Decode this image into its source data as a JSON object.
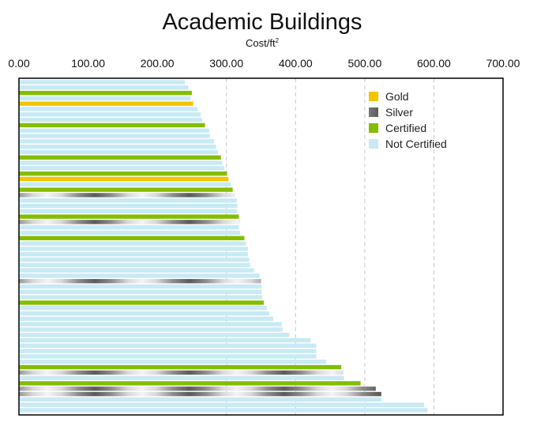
{
  "chart_data": {
    "type": "bar",
    "orientation": "horizontal",
    "title": "Academic Buildings",
    "subtitle": "Cost/ft",
    "subtitle_sup": "2",
    "xlim": [
      0,
      700
    ],
    "x_ticks": [
      "0.00",
      "100.00",
      "200.00",
      "300.00",
      "400.00",
      "500.00",
      "600.00",
      "700.00"
    ],
    "x_tick_values": [
      0,
      100,
      200,
      300,
      400,
      500,
      600,
      700
    ],
    "grid": "dashed vertical lines at 300, 400, 500, 600",
    "legend_position": "top-right",
    "categories": [
      {
        "key": "gold",
        "label": "Gold",
        "color": "#F5C400"
      },
      {
        "key": "silver",
        "label": "Silver",
        "color": "#8A8A8A"
      },
      {
        "key": "certified",
        "label": "Certified",
        "color": "#84BD00"
      },
      {
        "key": "not",
        "label": "Not Certified",
        "color": "#C8EAF4"
      }
    ],
    "bars": [
      {
        "value": 240,
        "category": "not"
      },
      {
        "value": 245,
        "category": "not"
      },
      {
        "value": 250,
        "category": "certified"
      },
      {
        "value": 248,
        "category": "not"
      },
      {
        "value": 252,
        "category": "gold"
      },
      {
        "value": 258,
        "category": "not"
      },
      {
        "value": 263,
        "category": "not"
      },
      {
        "value": 265,
        "category": "not"
      },
      {
        "value": 269,
        "category": "certified"
      },
      {
        "value": 275,
        "category": "not"
      },
      {
        "value": 276,
        "category": "not"
      },
      {
        "value": 282,
        "category": "not"
      },
      {
        "value": 285,
        "category": "not"
      },
      {
        "value": 288,
        "category": "not"
      },
      {
        "value": 292,
        "category": "certified"
      },
      {
        "value": 294,
        "category": "not"
      },
      {
        "value": 297,
        "category": "not"
      },
      {
        "value": 301,
        "category": "certified"
      },
      {
        "value": 303,
        "category": "gold"
      },
      {
        "value": 306,
        "category": "not"
      },
      {
        "value": 309,
        "category": "certified"
      },
      {
        "value": 313,
        "category": "silver"
      },
      {
        "value": 315,
        "category": "not"
      },
      {
        "value": 316,
        "category": "not"
      },
      {
        "value": 316,
        "category": "not"
      },
      {
        "value": 318,
        "category": "certified"
      },
      {
        "value": 320,
        "category": "silver"
      },
      {
        "value": 318,
        "category": "not"
      },
      {
        "value": 320,
        "category": "not"
      },
      {
        "value": 326,
        "category": "certified"
      },
      {
        "value": 328,
        "category": "not"
      },
      {
        "value": 331,
        "category": "not"
      },
      {
        "value": 331,
        "category": "not"
      },
      {
        "value": 333,
        "category": "not"
      },
      {
        "value": 334,
        "category": "not"
      },
      {
        "value": 340,
        "category": "not"
      },
      {
        "value": 348,
        "category": "not"
      },
      {
        "value": 350,
        "category": "silver"
      },
      {
        "value": 351,
        "category": "not"
      },
      {
        "value": 351,
        "category": "not"
      },
      {
        "value": 352,
        "category": "not"
      },
      {
        "value": 354,
        "category": "certified"
      },
      {
        "value": 358,
        "category": "not"
      },
      {
        "value": 362,
        "category": "not"
      },
      {
        "value": 368,
        "category": "not"
      },
      {
        "value": 380,
        "category": "not"
      },
      {
        "value": 381,
        "category": "not"
      },
      {
        "value": 391,
        "category": "not"
      },
      {
        "value": 422,
        "category": "not"
      },
      {
        "value": 430,
        "category": "not"
      },
      {
        "value": 430,
        "category": "not"
      },
      {
        "value": 430,
        "category": "not"
      },
      {
        "value": 444,
        "category": "not"
      },
      {
        "value": 466,
        "category": "certified"
      },
      {
        "value": 469,
        "category": "silver"
      },
      {
        "value": 470,
        "category": "not"
      },
      {
        "value": 494,
        "category": "certified"
      },
      {
        "value": 516,
        "category": "silver"
      },
      {
        "value": 524,
        "category": "silver"
      },
      {
        "value": 524,
        "category": "not"
      },
      {
        "value": 586,
        "category": "not"
      },
      {
        "value": 591,
        "category": "not"
      }
    ]
  }
}
